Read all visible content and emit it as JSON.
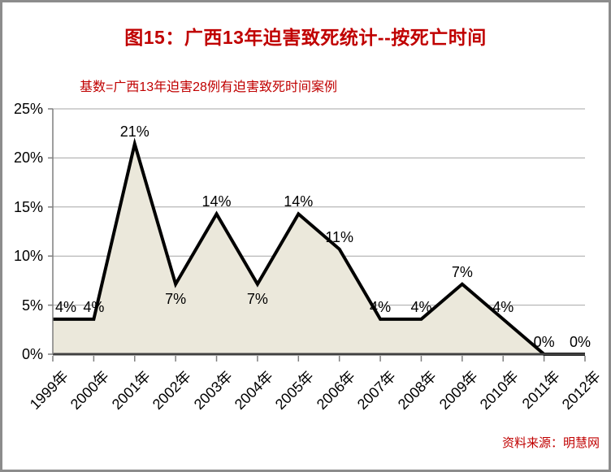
{
  "chart_data": {
    "type": "area",
    "title": "图15：广西13年迫害致死统计--按死亡时间",
    "subtitle": "基数=广西13年迫害28例有迫害致死时间案例",
    "source": "资料来源：明慧网",
    "categories": [
      "1999年",
      "2000年",
      "2001年",
      "2002年",
      "2003年",
      "2004年",
      "2005年",
      "2006年",
      "2007年",
      "2008年",
      "2009年",
      "2010年",
      "2011年",
      "2012年"
    ],
    "values": [
      3.57,
      3.57,
      21.43,
      7.14,
      14.29,
      7.14,
      14.29,
      10.71,
      3.57,
      3.57,
      7.14,
      3.57,
      0,
      0
    ],
    "labels": [
      "4%",
      "4%",
      "21%",
      "7%",
      "14%",
      "7%",
      "14%",
      "11%",
      "4%",
      "4%",
      "7%",
      "4%",
      "0%",
      "0%"
    ],
    "label_pos": [
      "above",
      "above",
      "above",
      "below",
      "above",
      "below",
      "above",
      "above",
      "above",
      "above",
      "above",
      "above",
      "above",
      "above"
    ],
    "label_dx": [
      16,
      0,
      0,
      0,
      0,
      0,
      0,
      0,
      0,
      0,
      0,
      0,
      0,
      -6
    ],
    "ylim": [
      0,
      25
    ],
    "ytick_step": 5,
    "yticks": [
      "0%",
      "5%",
      "10%",
      "15%",
      "20%",
      "25%"
    ],
    "grid": true,
    "legend": "none",
    "colors": {
      "area_fill": "#ebe8db",
      "line": "#000000",
      "gridline": "#a6a6a6",
      "axis_line": "#7f7f7f",
      "baseline": "#404040",
      "tick": "#7f7f7f",
      "accent_text": "#c00000",
      "axis_text": "#000000",
      "frame_border": "#8c8c8c"
    }
  }
}
